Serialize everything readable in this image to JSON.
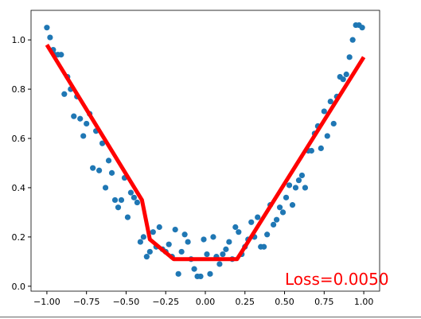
{
  "chart_data": {
    "type": "scatter",
    "xlim": [
      -1.1,
      1.1
    ],
    "ylim": [
      -0.02,
      1.12
    ],
    "grid": false,
    "x_ticks": [
      -1.0,
      -0.75,
      -0.5,
      -0.25,
      0.0,
      0.25,
      0.5,
      0.75,
      1.0
    ],
    "x_tick_labels": [
      "−1.00",
      "−0.75",
      "−0.50",
      "−0.25",
      "0.00",
      "0.25",
      "0.50",
      "0.75",
      "1.00"
    ],
    "y_ticks": [
      0.0,
      0.2,
      0.4,
      0.6,
      0.8,
      1.0
    ],
    "y_tick_labels": [
      "0.0",
      "0.2",
      "0.4",
      "0.6",
      "0.8",
      "1.0"
    ],
    "annotation": "Loss=0.0050",
    "colors": {
      "points": "#1f77b4",
      "fit_line": "#ff0000",
      "annotation": "#ff0000",
      "axes": "#000000"
    },
    "series": [
      {
        "kind": "scatter",
        "points": [
          [
            -1.0,
            1.05
          ],
          [
            -0.98,
            1.01
          ],
          [
            -0.96,
            0.96
          ],
          [
            -0.95,
            0.94
          ],
          [
            -0.93,
            0.94
          ],
          [
            -0.91,
            0.94
          ],
          [
            -0.89,
            0.78
          ],
          [
            -0.87,
            0.85
          ],
          [
            -0.85,
            0.8
          ],
          [
            -0.83,
            0.69
          ],
          [
            -0.81,
            0.77
          ],
          [
            -0.79,
            0.68
          ],
          [
            -0.77,
            0.61
          ],
          [
            -0.75,
            0.66
          ],
          [
            -0.73,
            0.7
          ],
          [
            -0.71,
            0.48
          ],
          [
            -0.69,
            0.63
          ],
          [
            -0.67,
            0.47
          ],
          [
            -0.65,
            0.58
          ],
          [
            -0.63,
            0.4
          ],
          [
            -0.61,
            0.51
          ],
          [
            -0.59,
            0.46
          ],
          [
            -0.57,
            0.35
          ],
          [
            -0.55,
            0.32
          ],
          [
            -0.53,
            0.35
          ],
          [
            -0.51,
            0.44
          ],
          [
            -0.49,
            0.28
          ],
          [
            -0.47,
            0.38
          ],
          [
            -0.45,
            0.36
          ],
          [
            -0.43,
            0.34
          ],
          [
            -0.41,
            0.18
          ],
          [
            -0.39,
            0.2
          ],
          [
            -0.37,
            0.12
          ],
          [
            -0.35,
            0.14
          ],
          [
            -0.33,
            0.22
          ],
          [
            -0.31,
            0.16
          ],
          [
            -0.29,
            0.24
          ],
          [
            -0.27,
            0.15
          ],
          [
            -0.25,
            0.14
          ],
          [
            -0.23,
            0.17
          ],
          [
            -0.21,
            0.12
          ],
          [
            -0.19,
            0.23
          ],
          [
            -0.17,
            0.05
          ],
          [
            -0.15,
            0.14
          ],
          [
            -0.13,
            0.21
          ],
          [
            -0.11,
            0.18
          ],
          [
            -0.09,
            0.11
          ],
          [
            -0.07,
            0.07
          ],
          [
            -0.05,
            0.04
          ],
          [
            -0.03,
            0.04
          ],
          [
            -0.01,
            0.19
          ],
          [
            0.01,
            0.13
          ],
          [
            0.03,
            0.05
          ],
          [
            0.05,
            0.2
          ],
          [
            0.07,
            0.12
          ],
          [
            0.09,
            0.09
          ],
          [
            0.11,
            0.13
          ],
          [
            0.13,
            0.15
          ],
          [
            0.15,
            0.18
          ],
          [
            0.17,
            0.11
          ],
          [
            0.19,
            0.24
          ],
          [
            0.21,
            0.22
          ],
          [
            0.23,
            0.13
          ],
          [
            0.25,
            0.16
          ],
          [
            0.27,
            0.19
          ],
          [
            0.29,
            0.26
          ],
          [
            0.31,
            0.2
          ],
          [
            0.33,
            0.28
          ],
          [
            0.35,
            0.16
          ],
          [
            0.37,
            0.16
          ],
          [
            0.39,
            0.21
          ],
          [
            0.41,
            0.33
          ],
          [
            0.43,
            0.25
          ],
          [
            0.45,
            0.27
          ],
          [
            0.47,
            0.32
          ],
          [
            0.49,
            0.3
          ],
          [
            0.51,
            0.36
          ],
          [
            0.53,
            0.41
          ],
          [
            0.55,
            0.33
          ],
          [
            0.57,
            0.4
          ],
          [
            0.59,
            0.43
          ],
          [
            0.61,
            0.45
          ],
          [
            0.63,
            0.4
          ],
          [
            0.65,
            0.55
          ],
          [
            0.67,
            0.55
          ],
          [
            0.69,
            0.62
          ],
          [
            0.71,
            0.65
          ],
          [
            0.73,
            0.56
          ],
          [
            0.75,
            0.71
          ],
          [
            0.77,
            0.61
          ],
          [
            0.79,
            0.75
          ],
          [
            0.81,
            0.66
          ],
          [
            0.83,
            0.77
          ],
          [
            0.85,
            0.85
          ],
          [
            0.87,
            0.84
          ],
          [
            0.89,
            0.86
          ],
          [
            0.91,
            0.93
          ],
          [
            0.93,
            1.0
          ],
          [
            0.95,
            1.06
          ],
          [
            0.97,
            1.06
          ],
          [
            0.99,
            1.05
          ]
        ]
      },
      {
        "kind": "line",
        "points": [
          [
            -1.0,
            0.98
          ],
          [
            -0.4,
            0.35
          ],
          [
            -0.35,
            0.19
          ],
          [
            -0.2,
            0.11
          ],
          [
            0.2,
            0.11
          ],
          [
            0.25,
            0.16
          ],
          [
            1.0,
            0.93
          ]
        ]
      }
    ]
  }
}
